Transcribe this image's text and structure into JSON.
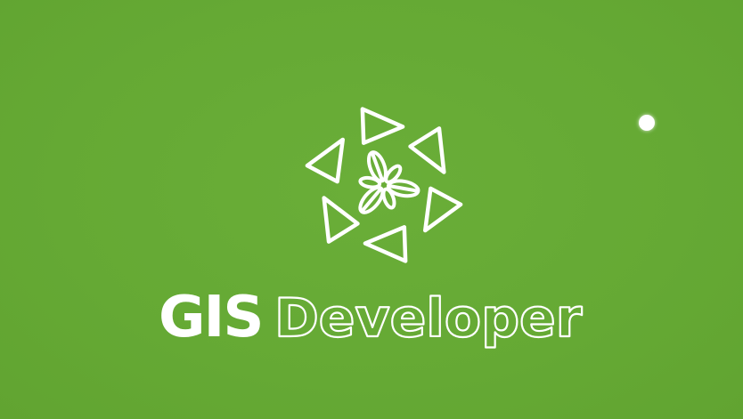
{
  "brand": {
    "name_bold": "GIS",
    "name_outline": "Developer",
    "colors": {
      "background": "#66aa35",
      "foreground": "#ffffff"
    },
    "icon": "gis-developer-emblem-icon"
  },
  "indicator": {
    "icon": "white-dot-icon"
  }
}
